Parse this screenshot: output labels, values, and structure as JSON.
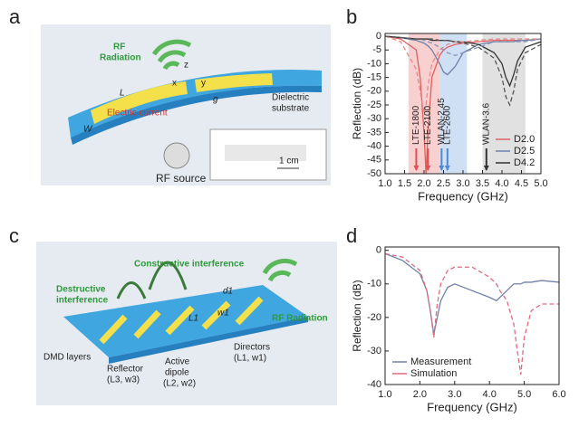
{
  "panel_labels": [
    "a",
    "b",
    "c",
    "d"
  ],
  "diagram_a": {
    "labels": [
      "RF",
      "Radiation",
      "L",
      "W",
      "g",
      "Electric current",
      "Dielectric",
      "substrate",
      "RF source",
      "1 cm",
      "z",
      "x",
      "y"
    ]
  },
  "diagram_c": {
    "labels": [
      "Destructive",
      "interference",
      "Constructive interference",
      "RF Radiation",
      "DMD layers",
      "Reflector",
      "(L3, w3)",
      "Active",
      "dipole",
      "(L2, w2)",
      "Directors",
      "(L1, w1)",
      "d1",
      "L1",
      "w1"
    ]
  },
  "chart_data": [
    {
      "type": "line",
      "xlabel": "Frequency (GHz)",
      "ylabel": "Reflection (dB)",
      "xlim": [
        1,
        5
      ],
      "ylim": [
        -50,
        1
      ],
      "xticks": [
        {
          "value": 1,
          "label": "1.0"
        },
        {
          "value": 1.5,
          "label": "1.5"
        },
        {
          "value": 2,
          "label": "2.0"
        },
        {
          "value": 2.5,
          "label": "2.5"
        },
        {
          "value": 3,
          "label": "3.0"
        },
        {
          "value": 3.5,
          "label": "3.5"
        },
        {
          "value": 4,
          "label": "4.0"
        },
        {
          "value": 4.5,
          "label": "4.5"
        },
        {
          "value": 5,
          "label": "5.0"
        }
      ],
      "yticks": [
        0,
        -5,
        -10,
        -15,
        -20,
        -25,
        -30,
        -35,
        -40,
        -45,
        -50
      ],
      "legend": "lower right",
      "bands": [
        {
          "x0": 1.6,
          "x1": 2.4,
          "color": "#f5bcbc"
        },
        {
          "x0": 2.4,
          "x1": 3.1,
          "color": "#bcd3ef"
        },
        {
          "x0": 3.5,
          "x1": 4.6,
          "color": "#d4d4d4"
        }
      ],
      "annotations": [
        {
          "label": "LTE-1800",
          "x": 1.8,
          "color": "#e05050"
        },
        {
          "label": "LTE-2100",
          "x": 2.1,
          "color": "#e05050"
        },
        {
          "label": "WLAN-2.45",
          "x": 2.45,
          "color": "#4a8ad8"
        },
        {
          "label": "LTE-2600",
          "x": 2.6,
          "color": "#4a8ad8"
        },
        {
          "label": "WLAN-3.6",
          "x": 3.6,
          "color": "#333333"
        }
      ],
      "x": [
        1.0,
        1.4,
        1.8,
        1.9,
        2.0,
        2.05,
        2.1,
        2.2,
        2.4,
        2.5,
        2.6,
        2.8,
        3.0,
        3.4,
        3.8,
        4.0,
        4.1,
        4.2,
        4.3,
        4.4,
        4.6,
        5.0
      ],
      "series": [
        {
          "name": "D2.0",
          "color": "#e06060",
          "values": [
            0,
            -1,
            -5,
            -15,
            -35,
            -50,
            -35,
            -15,
            -7,
            -5,
            -4,
            -3,
            -2.5,
            -2,
            -1.5,
            -1.5,
            -1.5,
            -1.5,
            -1.5,
            -1.5,
            -1.5,
            -1
          ]
        },
        {
          "name": "D2.5",
          "color": "#7080aa",
          "values": [
            0,
            -0.5,
            -1.5,
            -2,
            -2.5,
            -3,
            -3.5,
            -5,
            -10,
            -13,
            -14,
            -11,
            -6,
            -3,
            -2,
            -2,
            -2,
            -2,
            -2,
            -1.5,
            -1.5,
            -1
          ]
        },
        {
          "name": "D4.2",
          "color": "#333333",
          "values": [
            0,
            -0.5,
            -1,
            -1,
            -1,
            -1,
            -1,
            -1.5,
            -1.5,
            -1.5,
            -1.5,
            -2,
            -2,
            -3,
            -6,
            -10,
            -15,
            -18,
            -14,
            -9,
            -4,
            -2
          ]
        },
        {
          "color": "#e88a8a",
          "dashed": true,
          "values": [
            0,
            -2,
            -12,
            -20,
            -28,
            -25,
            -18,
            -10,
            -5,
            -4,
            -3,
            -2,
            -2,
            -1.5,
            -1,
            -1,
            -1,
            -1,
            -1,
            -1,
            -1,
            -1
          ]
        },
        {
          "color": "#8a96bb",
          "dashed": true,
          "values": [
            0,
            -0.5,
            -1,
            -1,
            -1.5,
            -1.5,
            -2,
            -2.5,
            -4,
            -5,
            -6,
            -7,
            -6,
            -4,
            -2,
            -2,
            -2,
            -2,
            -2,
            -2,
            -2,
            -1
          ]
        },
        {
          "color": "#555555",
          "dashed": true,
          "values": [
            0,
            -0.5,
            -1,
            -1,
            -1,
            -1,
            -1,
            -1,
            -1.5,
            -1.5,
            -1.5,
            -2,
            -2.5,
            -4,
            -8,
            -15,
            -22,
            -25,
            -20,
            -12,
            -6,
            -3
          ]
        }
      ]
    },
    {
      "type": "line",
      "xlabel": "Frequency (GHz)",
      "ylabel": "Reflection (dB)",
      "xlim": [
        1,
        6
      ],
      "ylim": [
        -40,
        1
      ],
      "xticks": [
        {
          "value": 1,
          "label": "1.0"
        },
        {
          "value": 2,
          "label": "2.0"
        },
        {
          "value": 3,
          "label": "3.0"
        },
        {
          "value": 4,
          "label": "4.0"
        },
        {
          "value": 5,
          "label": "5.0"
        },
        {
          "value": 6,
          "label": "6.0"
        }
      ],
      "yticks": [
        0,
        -10,
        -20,
        -30,
        -40
      ],
      "legend": "lower left",
      "x": [
        1.0,
        1.5,
        2.0,
        2.2,
        2.3,
        2.4,
        2.5,
        2.6,
        2.8,
        3.0,
        3.5,
        4.0,
        4.2,
        4.3,
        4.5,
        4.7,
        4.8,
        4.9,
        5.0,
        5.2,
        5.5,
        6.0
      ],
      "series": [
        {
          "name": "Measurement",
          "color": "#7080aa",
          "values": [
            -1,
            -3,
            -7,
            -12,
            -18,
            -25,
            -20,
            -15,
            -11,
            -10,
            -12,
            -14,
            -15,
            -14,
            -12,
            -10,
            -10,
            -10,
            -9.5,
            -9.5,
            -9,
            -9.5
          ]
        },
        {
          "name": "Simulation",
          "color": "#e06a80",
          "dashed": true,
          "values": [
            -1,
            -2,
            -6,
            -12,
            -18,
            -26,
            -16,
            -10,
            -6,
            -5,
            -5,
            -8,
            -10,
            -12,
            -15,
            -22,
            -30,
            -37,
            -26,
            -18,
            -16,
            -16
          ]
        }
      ]
    }
  ]
}
